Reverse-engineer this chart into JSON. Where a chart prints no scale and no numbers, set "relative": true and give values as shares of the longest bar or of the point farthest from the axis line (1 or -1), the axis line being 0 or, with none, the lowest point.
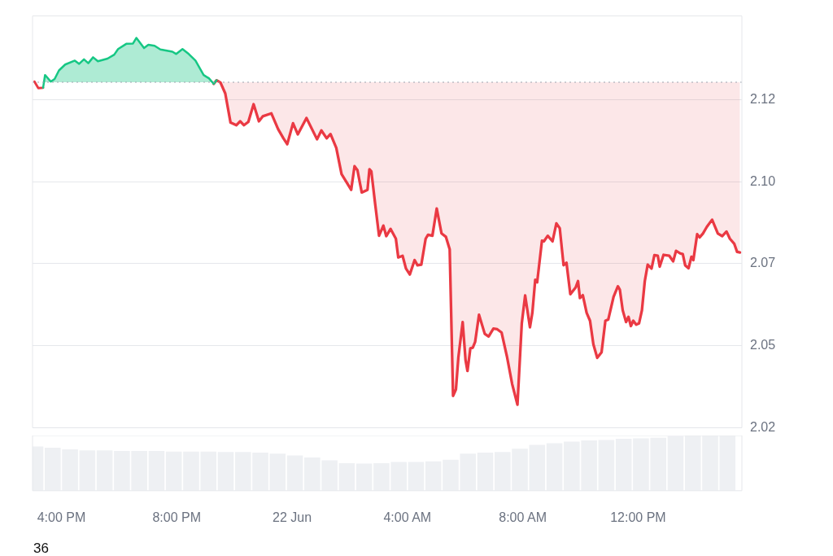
{
  "chart_data": [
    {
      "type": "area",
      "tick_labels": "y",
      "xlim": [
        "--06-21T15:00",
        "--06-22T15:36"
      ],
      "ylim": [
        2.0225,
        2.148
      ],
      "yticks": [
        {
          "value": 2.0225,
          "label": "2.02"
        },
        {
          "value": 2.0475,
          "label": "2.05"
        },
        {
          "value": 2.0725,
          "label": "2.07"
        },
        {
          "value": 2.0975,
          "label": "2.10"
        },
        {
          "value": 2.1225,
          "label": "2.12"
        }
      ],
      "grid": "y",
      "legend": false,
      "marker": "none",
      "line_style": "solid",
      "ref_lines": [
        {
          "axis": "y",
          "value": 2.1278,
          "color": "#9ca3af",
          "line_style": "dotted"
        }
      ],
      "series": [
        {
          "color": "#16c784",
          "x": [
            "--06-21T15:22",
            "--06-21T15:26",
            "--06-21T15:38",
            "--06-21T15:46",
            "--06-21T15:55",
            "--06-21T16:08",
            "--06-21T16:28",
            "--06-21T16:37",
            "--06-21T16:47",
            "--06-21T16:56",
            "--06-21T17:06",
            "--06-21T17:16",
            "--06-21T17:36",
            "--06-21T17:50",
            "--06-21T17:58",
            "--06-21T18:15",
            "--06-21T18:29",
            "--06-21T18:36",
            "--06-21T18:52",
            "--06-21T19:01",
            "--06-21T19:14",
            "--06-21T19:26",
            "--06-21T19:51",
            "--06-21T19:59",
            "--06-21T20:12",
            "--06-21T20:25",
            "--06-21T20:39",
            "--06-21T20:56",
            "--06-21T21:07",
            "--06-21T21:17",
            "--06-21T21:23"
          ],
          "values": [
            2.1261,
            2.13,
            2.128,
            2.1288,
            2.1314,
            2.1332,
            2.1344,
            2.1334,
            2.1348,
            2.1336,
            2.1354,
            2.1342,
            2.135,
            2.1362,
            2.1379,
            2.1395,
            2.1396,
            2.1413,
            2.1382,
            2.1392,
            2.1389,
            2.1378,
            2.1371,
            2.1364,
            2.1379,
            2.1364,
            2.1344,
            2.13,
            2.129,
            2.1273,
            2.1284
          ]
        },
        {
          "type": "line",
          "color": "#ea3943",
          "x": [
            "--06-21T15:04",
            "--06-21T15:12",
            "--06-21T15:22"
          ],
          "values": [
            2.128,
            2.126,
            2.1261
          ]
        },
        {
          "type": "line",
          "color": "#ea3943",
          "upper": [
            2.1278,
            2.1278,
            2.1278,
            2.1278,
            2.1278,
            2.1278,
            2.1278,
            2.1278,
            2.1278,
            2.1278,
            2.1278,
            2.1278,
            2.1278,
            2.1278,
            2.1278,
            2.1278,
            2.1278,
            2.1278,
            2.1278,
            2.1278,
            2.1278,
            2.1278,
            2.1278,
            2.1278,
            2.1278,
            2.1278,
            2.1278,
            2.1278,
            2.1278,
            2.1278,
            2.1278,
            2.1278,
            2.1278,
            2.1278,
            2.1278,
            2.1278,
            2.1278,
            2.1278,
            2.1278,
            2.1278,
            2.1278,
            2.1278,
            2.1278,
            2.1278,
            2.1278,
            2.1278,
            2.1278,
            2.1278,
            2.1278,
            2.1278,
            2.1278,
            2.1278,
            2.1278,
            2.1278,
            2.1278,
            2.1278,
            2.1278,
            2.1278,
            2.1278,
            2.1278,
            2.1278,
            2.1278,
            2.1278,
            2.1278,
            2.1278,
            2.1278,
            2.1278,
            2.1278,
            2.1278,
            2.1278,
            2.1278,
            2.1278,
            2.1278,
            2.1278,
            2.1278,
            2.1278,
            2.1278,
            2.1278,
            2.1278,
            2.1278,
            2.1278,
            2.1278,
            2.1278,
            2.1278,
            2.1278,
            2.1278,
            2.1278,
            2.1278,
            2.1278,
            2.1278,
            2.1278,
            2.1278,
            2.1278,
            2.1278,
            2.1278,
            2.1278,
            2.1278,
            2.1278,
            2.1278,
            2.1278,
            2.1278,
            2.1278,
            2.1278,
            2.1278,
            2.1278,
            2.1278,
            2.1278,
            2.1278,
            2.1278,
            2.1278,
            2.1278,
            2.1278,
            2.1278,
            2.1278,
            2.1278,
            2.1278,
            2.1278,
            2.1278,
            2.1278,
            2.1278,
            2.1278,
            2.1278,
            2.1278,
            2.1278,
            2.1278,
            2.1278,
            2.1278,
            2.1278,
            2.1278,
            2.1278,
            2.1278,
            2.1278,
            2.1278,
            2.1278,
            2.1278
          ],
          "lower": [
            2.1273,
            2.1284,
            2.1277,
            2.1244,
            2.1155,
            2.1147,
            2.1159,
            2.1147,
            2.1157,
            2.1211,
            2.1159,
            2.1174,
            2.1183,
            2.1135,
            2.1107,
            2.1089,
            2.1153,
            2.1119,
            2.1169,
            2.1104,
            2.1131,
            2.1107,
            2.112,
            2.1078,
            2.0998,
            2.095,
            2.1022,
            2.101,
            2.0942,
            2.095,
            2.1013,
            2.1006,
            2.0906,
            2.081,
            2.0841,
            2.0809,
            2.0831,
            2.0801,
            2.0744,
            2.0749,
            2.071,
            2.0692,
            2.0736,
            2.072,
            2.0722,
            2.0801,
            2.0813,
            2.081,
            2.0893,
            2.0817,
            2.0807,
            2.0769,
            2.0322,
            2.0342,
            2.0438,
            2.0547,
            2.0431,
            2.0398,
            2.0467,
            2.0469,
            2.0487,
            2.0569,
            2.0511,
            2.0503,
            2.0527,
            2.0525,
            2.0515,
            2.0443,
            2.0358,
            2.0295,
            2.0543,
            2.0628,
            2.0531,
            2.0575,
            2.0676,
            2.0668,
            2.0795,
            2.0793,
            2.081,
            2.0793,
            2.0848,
            2.0833,
            2.072,
            2.0728,
            2.0632,
            2.0652,
            2.0672,
            2.062,
            2.0629,
            2.0575,
            2.0551,
            2.0479,
            2.0438,
            2.0455,
            2.0551,
            2.0555,
            2.0624,
            2.0656,
            2.0646,
            2.0583,
            2.0547,
            2.0563,
            2.0535,
            2.0551,
            2.0539,
            2.0543,
            2.0583,
            2.0672,
            2.0722,
            2.071,
            2.0751,
            2.0749,
            2.0716,
            2.0752,
            2.0749,
            2.0732,
            2.0764,
            2.0756,
            2.0754,
            2.072,
            2.0711,
            2.0746,
            2.0736,
            2.0815,
            2.0805,
            2.0817,
            2.0837,
            2.0859,
            2.0817,
            2.0809,
            2.0823,
            2.0801,
            2.0786,
            2.0761,
            2.0759
          ],
          "x": [
            "--06-21T21:17",
            "--06-21T21:23",
            "--06-21T21:31",
            "--06-21T21:41",
            "--06-21T21:52",
            "--06-21T22:04",
            "--06-21T22:12",
            "--06-21T22:20",
            "--06-21T22:29",
            "--06-21T22:40",
            "--06-21T22:51",
            "--06-21T22:59",
            "--06-21T23:17",
            "--06-21T23:31",
            "--06-21T23:42",
            "--06-21T23:50",
            "--06-22T00:02",
            "--06-22T00:12",
            "--06-22T00:30",
            "--06-22T00:52",
            "--06-22T01:01",
            "--06-22T01:12",
            "--06-22T01:20",
            "--06-22T01:32",
            "--06-22T01:43",
            "--06-22T02:03",
            "--06-22T02:10",
            "--06-22T02:16",
            "--06-22T02:25",
            "--06-22T02:37",
            "--06-22T02:41",
            "--06-22T02:45",
            "--06-22T02:53",
            "--06-22T03:01",
            "--06-22T03:10",
            "--06-22T03:16",
            "--06-22T03:25",
            "--06-22T03:36",
            "--06-22T03:41",
            "--06-22T03:50",
            "--06-22T03:57",
            "--06-22T04:05",
            "--06-22T04:15",
            "--06-22T04:21",
            "--06-22T04:29",
            "--06-22T04:38",
            "--06-22T04:43",
            "--06-22T04:52",
            "--06-22T05:01",
            "--06-22T05:11",
            "--06-22T05:20",
            "--06-22T05:28",
            "--06-22T05:35",
            "--06-22T05:41",
            "--06-22T05:46",
            "--06-22T05:55",
            "--06-22T06:01",
            "--06-22T06:05",
            "--06-22T06:11",
            "--06-22T06:16",
            "--06-22T06:21",
            "--06-22T06:29",
            "--06-22T06:41",
            "--06-22T06:49",
            "--06-22T06:59",
            "--06-22T07:07",
            "--06-22T07:16",
            "--06-22T07:27",
            "--06-22T07:38",
            "--06-22T07:49",
            "--06-22T07:58",
            "--06-22T08:05",
            "--06-22T08:15",
            "--06-22T08:20",
            "--06-22T08:26",
            "--06-22T08:30",
            "--06-22T08:40",
            "--06-22T08:44",
            "--06-22T08:52",
            "--06-22T09:02",
            "--06-22T09:10",
            "--06-22T09:17",
            "--06-22T09:25",
            "--06-22T09:31",
            "--06-22T09:39",
            "--06-22T09:50",
            "--06-22T09:55",
            "--06-22T09:59",
            "--06-22T10:05",
            "--06-22T10:13",
            "--06-22T10:20",
            "--06-22T10:27",
            "--06-22T10:35",
            "--06-22T10:44",
            "--06-22T10:52",
            "--06-22T10:58",
            "--06-22T11:09",
            "--06-22T11:18",
            "--06-22T11:22",
            "--06-22T11:28",
            "--06-22T11:35",
            "--06-22T11:40",
            "--06-22T11:45",
            "--06-22T11:50",
            "--06-22T11:56",
            "--06-22T12:02",
            "--06-22T12:08",
            "--06-22T12:14",
            "--06-22T12:20",
            "--06-22T12:28",
            "--06-22T12:34",
            "--06-22T12:41",
            "--06-22T12:45",
            "--06-22T12:53",
            "--06-22T13:05",
            "--06-22T13:13",
            "--06-22T13:19",
            "--06-22T13:28",
            "--06-22T13:33",
            "--06-22T13:38",
            "--06-22T13:45",
            "--06-22T13:51",
            "--06-22T13:55",
            "--06-22T14:03",
            "--06-22T14:08",
            "--06-22T14:15",
            "--06-22T14:23",
            "--06-22T14:34",
            "--06-22T14:46",
            "--06-22T14:55",
            "--06-22T15:04",
            "--06-22T15:11",
            "--06-22T15:20",
            "--06-22T15:26",
            "--06-22T15:32"
          ],
          "values": [
            2.1273,
            2.1284,
            2.1277,
            2.1244,
            2.1155,
            2.1147,
            2.1159,
            2.1147,
            2.1157,
            2.1211,
            2.1159,
            2.1174,
            2.1183,
            2.1135,
            2.1107,
            2.1089,
            2.1153,
            2.1119,
            2.1169,
            2.1104,
            2.1131,
            2.1107,
            2.112,
            2.1078,
            2.0998,
            2.095,
            2.1022,
            2.101,
            2.0942,
            2.095,
            2.1013,
            2.1006,
            2.0906,
            2.081,
            2.0841,
            2.0809,
            2.0831,
            2.0801,
            2.0744,
            2.0749,
            2.071,
            2.0692,
            2.0736,
            2.072,
            2.0722,
            2.0801,
            2.0813,
            2.081,
            2.0893,
            2.0817,
            2.0807,
            2.0769,
            2.0322,
            2.0342,
            2.0438,
            2.0547,
            2.0431,
            2.0398,
            2.0467,
            2.0469,
            2.0487,
            2.0569,
            2.0511,
            2.0503,
            2.0527,
            2.0525,
            2.0515,
            2.0443,
            2.0358,
            2.0295,
            2.0543,
            2.0628,
            2.0531,
            2.0575,
            2.0676,
            2.0668,
            2.0795,
            2.0793,
            2.081,
            2.0793,
            2.0848,
            2.0833,
            2.072,
            2.0728,
            2.0632,
            2.0652,
            2.0672,
            2.062,
            2.0629,
            2.0575,
            2.0551,
            2.0479,
            2.0438,
            2.0455,
            2.0551,
            2.0555,
            2.0624,
            2.0656,
            2.0646,
            2.0583,
            2.0547,
            2.0563,
            2.0535,
            2.0551,
            2.0539,
            2.0543,
            2.0583,
            2.0672,
            2.0722,
            2.071,
            2.0751,
            2.0749,
            2.0716,
            2.0752,
            2.0749,
            2.0732,
            2.0764,
            2.0756,
            2.0754,
            2.072,
            2.0711,
            2.0746,
            2.0736,
            2.0815,
            2.0805,
            2.0817,
            2.0837,
            2.0859,
            2.0817,
            2.0809,
            2.0823,
            2.0801,
            2.0786,
            2.0761,
            2.0759
          ]
        }
      ]
    },
    {
      "type": "bar",
      "relative": true,
      "xlim": [
        "--06-21T15:00",
        "--06-22T15:36"
      ],
      "xticks": [
        {
          "value": "--06-21T16:00",
          "label": "4:00 PM"
        },
        {
          "value": "--06-21T20:00",
          "label": "8:00 PM"
        },
        {
          "value": "--06-22T00:00",
          "label": "22 Jun"
        },
        {
          "value": "--06-22T04:00",
          "label": "4:00 AM"
        },
        {
          "value": "--06-22T08:00",
          "label": "8:00 AM"
        },
        {
          "value": "--06-22T12:00",
          "label": "12:00 PM"
        }
      ],
      "legend": false,
      "annotations": [
        "36"
      ],
      "series": [
        {
          "color": "#eef0f3",
          "x": [
            "--06-21T15:06",
            "--06-21T15:42",
            "--06-21T16:18",
            "--06-21T16:54",
            "--06-21T17:30",
            "--06-21T18:06",
            "--06-21T18:42",
            "--06-21T19:18",
            "--06-21T19:54",
            "--06-21T20:30",
            "--06-21T21:06",
            "--06-21T21:42",
            "--06-21T22:18",
            "--06-21T22:54",
            "--06-21T23:30",
            "--06-22T00:06",
            "--06-22T00:42",
            "--06-22T01:18",
            "--06-22T01:54",
            "--06-22T02:30",
            "--06-22T03:06",
            "--06-22T03:42",
            "--06-22T04:18",
            "--06-22T04:54",
            "--06-22T05:30",
            "--06-22T06:06",
            "--06-22T06:42",
            "--06-22T07:18",
            "--06-22T07:54",
            "--06-22T08:30",
            "--06-22T09:06",
            "--06-22T09:42",
            "--06-22T10:18",
            "--06-22T10:54",
            "--06-22T11:30",
            "--06-22T12:06",
            "--06-22T12:42",
            "--06-22T13:18",
            "--06-22T13:54",
            "--06-22T14:30",
            "--06-22T15:06"
          ],
          "values": [
            0.8,
            0.78,
            0.75,
            0.73,
            0.73,
            0.72,
            0.72,
            0.72,
            0.71,
            0.71,
            0.71,
            0.7,
            0.7,
            0.69,
            0.67,
            0.64,
            0.6,
            0.55,
            0.5,
            0.49,
            0.5,
            0.52,
            0.52,
            0.53,
            0.56,
            0.67,
            0.69,
            0.7,
            0.76,
            0.83,
            0.86,
            0.89,
            0.91,
            0.92,
            0.94,
            0.95,
            0.96,
            0.99,
            1.0,
            1.0,
            1.0
          ]
        }
      ]
    }
  ]
}
